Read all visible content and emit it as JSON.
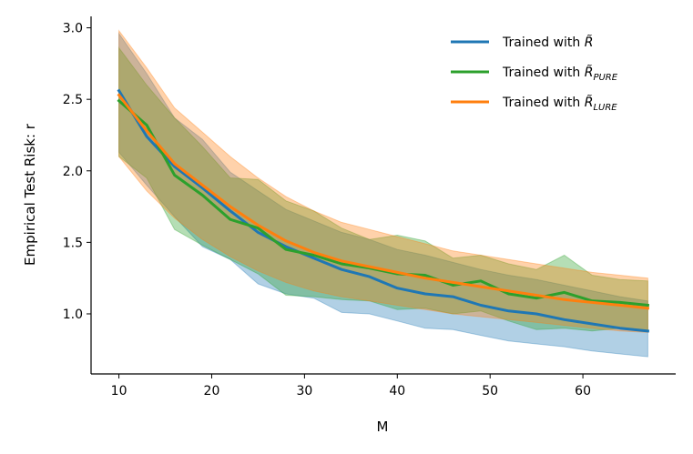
{
  "chart_data": {
    "type": "line",
    "title": "",
    "xlabel": "M",
    "ylabel": "Empirical Test Risk: r",
    "xlim": [
      7,
      70
    ],
    "ylim": [
      0.58,
      3.08
    ],
    "xticks": [
      10,
      20,
      30,
      40,
      50,
      60
    ],
    "yticks": [
      1.0,
      1.5,
      2.0,
      2.5,
      3.0
    ],
    "ytick_labels": [
      "1.0",
      "1.5",
      "2.0",
      "2.5",
      "3.0"
    ],
    "grid": false,
    "legend_position": "top-right",
    "x": [
      10,
      13,
      16,
      19,
      22,
      25,
      28,
      31,
      34,
      37,
      40,
      43,
      46,
      49,
      52,
      55,
      58,
      61,
      64,
      67
    ],
    "series": [
      {
        "name": "Trained with R̃",
        "legend_base": "Trained with ",
        "legend_symbol": "R̃",
        "legend_sub": "",
        "color": "#1f77b4",
        "mean": [
          2.56,
          2.24,
          2.03,
          1.88,
          1.72,
          1.57,
          1.47,
          1.39,
          1.31,
          1.26,
          1.18,
          1.14,
          1.12,
          1.06,
          1.02,
          1.0,
          0.96,
          0.93,
          0.9,
          0.88
        ],
        "lower": [
          2.13,
          1.9,
          1.68,
          1.47,
          1.38,
          1.21,
          1.14,
          1.11,
          1.01,
          1.0,
          0.95,
          0.9,
          0.89,
          0.85,
          0.81,
          0.79,
          0.77,
          0.74,
          0.72,
          0.7
        ],
        "upper": [
          2.96,
          2.68,
          2.37,
          2.22,
          1.99,
          1.86,
          1.73,
          1.65,
          1.57,
          1.52,
          1.45,
          1.41,
          1.36,
          1.31,
          1.27,
          1.24,
          1.2,
          1.16,
          1.12,
          1.09
        ]
      },
      {
        "name": "Trained with R̃_PURE",
        "legend_base": "Trained with ",
        "legend_symbol": "R̃",
        "legend_sub": "PURE",
        "color": "#2ca02c",
        "mean": [
          2.49,
          2.32,
          1.97,
          1.83,
          1.66,
          1.6,
          1.45,
          1.41,
          1.35,
          1.32,
          1.28,
          1.27,
          1.2,
          1.23,
          1.14,
          1.11,
          1.15,
          1.09,
          1.08,
          1.06
        ],
        "lower": [
          2.1,
          1.95,
          1.59,
          1.48,
          1.38,
          1.28,
          1.13,
          1.12,
          1.1,
          1.09,
          1.03,
          1.04,
          1.0,
          1.02,
          0.95,
          0.89,
          0.9,
          0.88,
          0.9,
          0.88
        ],
        "upper": [
          2.86,
          2.6,
          2.37,
          2.17,
          1.95,
          1.94,
          1.79,
          1.72,
          1.6,
          1.52,
          1.55,
          1.51,
          1.39,
          1.41,
          1.35,
          1.31,
          1.41,
          1.27,
          1.24,
          1.23
        ]
      },
      {
        "name": "Trained with R̃_LURE",
        "legend_base": "Trained with ",
        "legend_symbol": "R̃",
        "legend_sub": "LURE",
        "color": "#ff7f0e",
        "mean": [
          2.53,
          2.28,
          2.05,
          1.9,
          1.75,
          1.62,
          1.51,
          1.43,
          1.37,
          1.33,
          1.29,
          1.25,
          1.22,
          1.19,
          1.16,
          1.13,
          1.1,
          1.08,
          1.06,
          1.04
        ],
        "lower": [
          2.1,
          1.86,
          1.67,
          1.52,
          1.4,
          1.3,
          1.22,
          1.16,
          1.12,
          1.09,
          1.06,
          1.03,
          1.0,
          0.98,
          0.96,
          0.94,
          0.92,
          0.9,
          0.88,
          0.87
        ],
        "upper": [
          2.98,
          2.72,
          2.44,
          2.27,
          2.1,
          1.95,
          1.82,
          1.72,
          1.64,
          1.59,
          1.54,
          1.49,
          1.44,
          1.41,
          1.38,
          1.35,
          1.32,
          1.29,
          1.27,
          1.25
        ]
      }
    ]
  }
}
